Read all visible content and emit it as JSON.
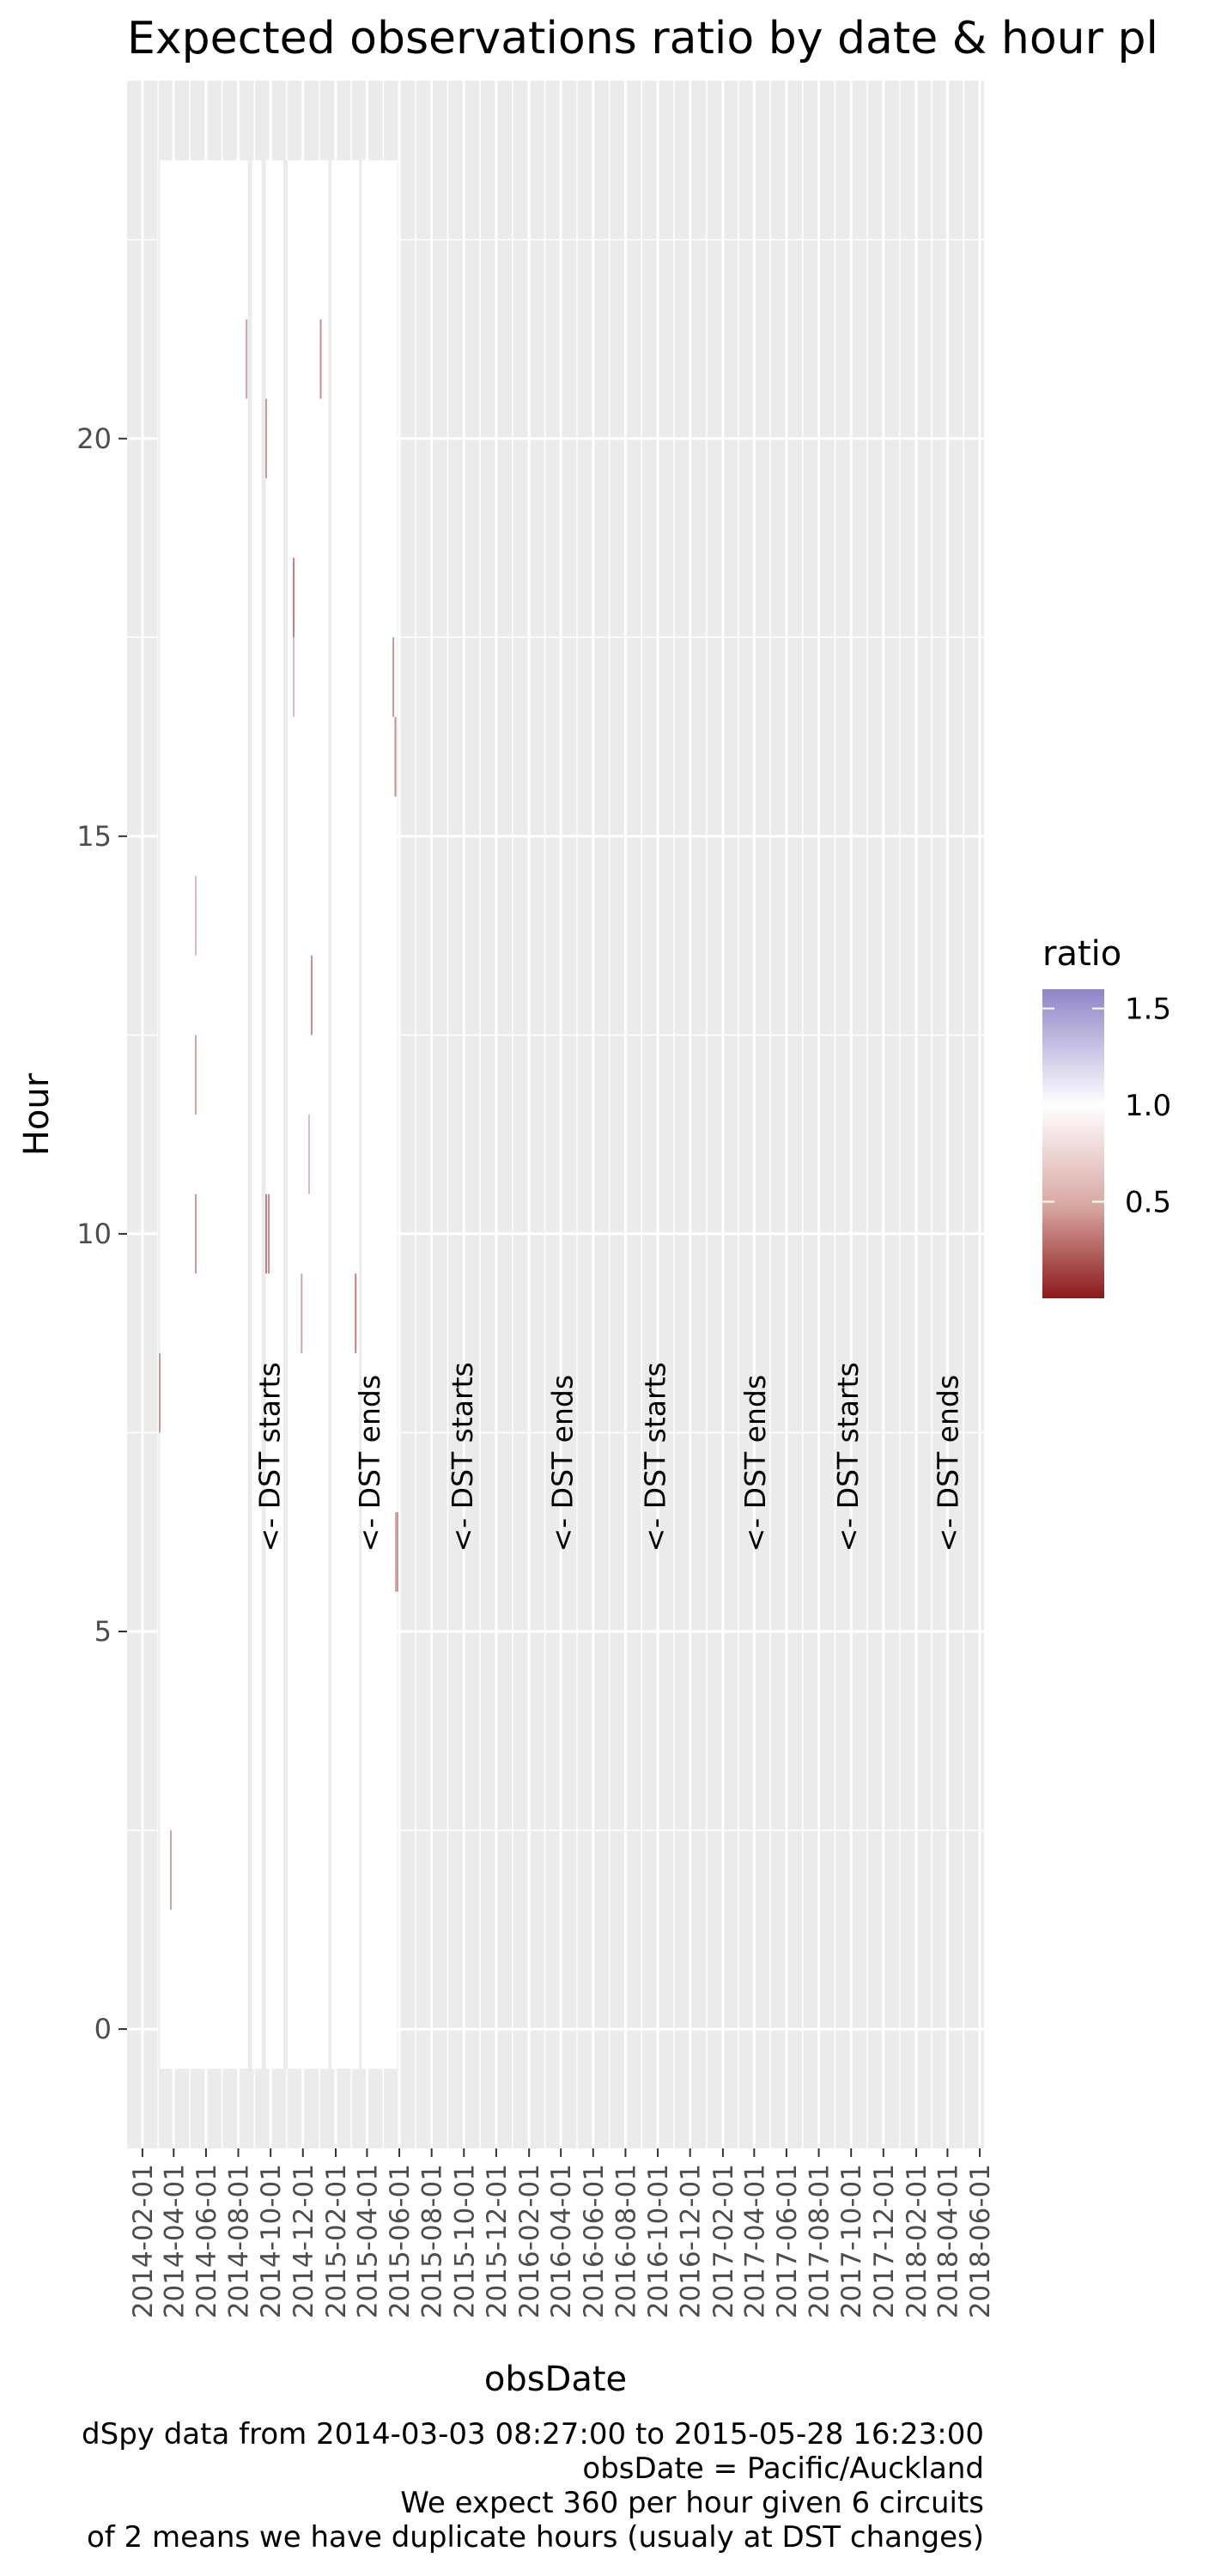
{
  "chart_data": {
    "type": "heatmap",
    "title": "Expected observations ratio by date & hour pl",
    "xlabel": "obsDate",
    "ylabel": "Hour",
    "x_tick_labels": [
      "2014-02-01",
      "2014-04-01",
      "2014-06-01",
      "2014-08-01",
      "2014-10-01",
      "2014-12-01",
      "2015-02-01",
      "2015-04-01",
      "2015-06-01",
      "2015-08-01",
      "2015-10-01",
      "2015-12-01",
      "2016-02-01",
      "2016-04-01",
      "2016-06-01",
      "2016-08-01",
      "2016-10-01",
      "2016-12-01",
      "2017-02-01",
      "2017-04-01",
      "2017-06-01",
      "2017-08-01",
      "2017-10-01",
      "2017-12-01",
      "2018-02-01",
      "2018-04-01",
      "2018-06-01"
    ],
    "y_ticks": [
      0,
      5,
      10,
      15,
      20
    ],
    "ylim": [
      -1.5,
      24.5
    ],
    "xlim": [
      "2014-01-03",
      "2018-06-09"
    ],
    "legend": {
      "title": "ratio",
      "position": "right",
      "breaks": [
        0.5,
        1.0,
        1.5
      ],
      "labels": [
        "0.5",
        "1.0",
        "1.5"
      ],
      "range": [
        0.0,
        1.6
      ],
      "colors": {
        "low": "#8b1a1a",
        "mid": "#ffffff",
        "high": "#8e85c8"
      }
    },
    "data_extent": {
      "x": [
        "2014-03-03",
        "2015-05-28"
      ],
      "y": [
        -0.5,
        23.5
      ]
    },
    "missing_data_gaps": [
      {
        "x": [
          "2014-08-19",
          "2014-08-27"
        ],
        "y": [
          -0.5,
          23.5
        ]
      },
      {
        "x": [
          "2014-09-14",
          "2014-09-22"
        ],
        "y": [
          -0.5,
          23.5
        ]
      },
      {
        "x": [
          "2014-10-25",
          "2014-11-02"
        ],
        "y": [
          -0.5,
          23.5
        ]
      },
      {
        "x": [
          "2015-01-18",
          "2015-01-24"
        ],
        "y": [
          -0.5,
          23.5
        ]
      },
      {
        "x": [
          "2015-03-17",
          "2015-03-22"
        ],
        "y": [
          -0.5,
          23.5
        ]
      },
      {
        "x": [
          "2014-03-03",
          "2014-03-06"
        ],
        "y": [
          -0.5,
          7.5
        ]
      },
      {
        "x": [
          "2014-03-03",
          "2014-03-06"
        ],
        "y": [
          8.5,
          23.5
        ]
      }
    ],
    "low_ratio_marks": [
      {
        "date": "2014-03-04",
        "hour": 8,
        "ratio": 0.55
      },
      {
        "date": "2014-03-25",
        "hour": 2,
        "ratio": 0.6
      },
      {
        "date": "2014-05-11",
        "hour": 10,
        "ratio": 0.55
      },
      {
        "date": "2014-05-11",
        "hour": 12,
        "ratio": 0.6
      },
      {
        "date": "2014-05-11",
        "hour": 14,
        "ratio": 0.7
      },
      {
        "date": "2014-08-15",
        "hour": 21,
        "ratio": 0.6
      },
      {
        "date": "2014-09-21",
        "hour": 10,
        "ratio": 0.45
      },
      {
        "date": "2014-09-26",
        "hour": 10,
        "ratio": 0.5
      },
      {
        "date": "2014-09-21",
        "hour": 20,
        "ratio": 0.55
      },
      {
        "date": "2014-11-12",
        "hour": 18,
        "ratio": 0.45
      },
      {
        "date": "2014-11-12",
        "hour": 17,
        "ratio": 0.7
      },
      {
        "date": "2014-11-27",
        "hour": 9,
        "ratio": 0.6
      },
      {
        "date": "2014-12-11",
        "hour": 11,
        "ratio": 0.7
      },
      {
        "date": "2014-12-16",
        "hour": 13,
        "ratio": 0.5
      },
      {
        "date": "2015-01-02",
        "hour": 21,
        "ratio": 0.5
      },
      {
        "date": "2015-03-09",
        "hour": 9,
        "ratio": 0.45
      },
      {
        "date": "2015-05-19",
        "hour": 17,
        "ratio": 0.55
      },
      {
        "date": "2015-05-23",
        "hour": 16,
        "ratio": 0.5
      },
      {
        "date": "2015-05-24",
        "hour": 6,
        "ratio": 0.6
      },
      {
        "date": "2015-05-27",
        "hour": 6,
        "ratio": 0.55
      }
    ],
    "annotations": [
      {
        "text": "<- DST starts",
        "date": "2014-09-28",
        "hour": 6
      },
      {
        "text": "<- DST ends",
        "date": "2015-04-05",
        "hour": 6
      },
      {
        "text": "<- DST starts",
        "date": "2015-09-27",
        "hour": 6
      },
      {
        "text": "<- DST ends",
        "date": "2016-04-03",
        "hour": 6
      },
      {
        "text": "<- DST starts",
        "date": "2016-09-25",
        "hour": 6
      },
      {
        "text": "<- DST ends",
        "date": "2017-04-02",
        "hour": 6
      },
      {
        "text": "<- DST starts",
        "date": "2017-09-24",
        "hour": 6
      },
      {
        "text": "<- DST ends",
        "date": "2018-04-01",
        "hour": 6
      }
    ],
    "caption": [
      "dSpy data from 2014-03-03 08:27:00 to 2015-05-28 16:23:00",
      "obsDate = Pacific/Auckland",
      "We expect 360 per hour given 6 circuits",
      "of 2 means we have duplicate hours (usualy at DST changes)"
    ],
    "grid": true
  }
}
